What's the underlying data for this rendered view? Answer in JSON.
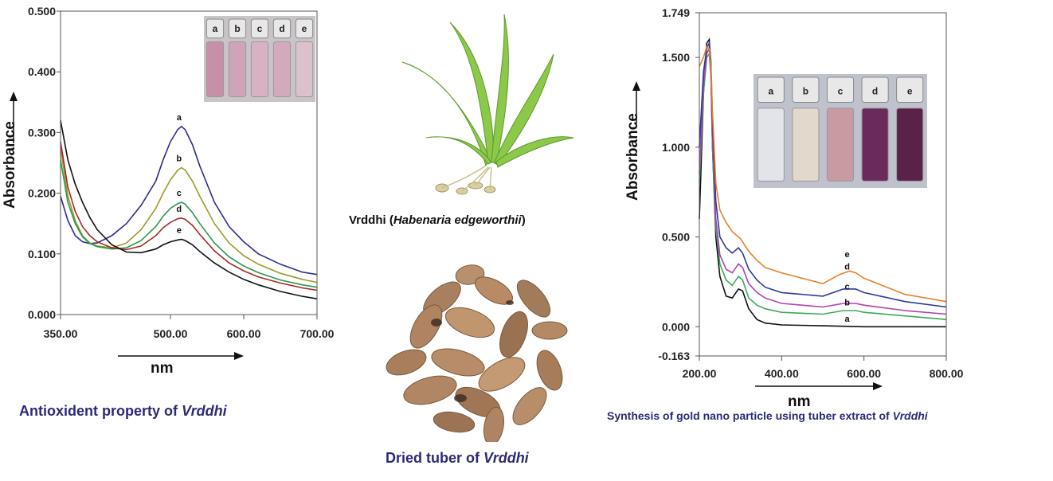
{
  "left_figure": {
    "caption_text": "Antioxident property of ",
    "caption_italic": "Vrddhi",
    "inset_vials": [
      "a",
      "b",
      "c",
      "d",
      "e"
    ]
  },
  "center": {
    "plant_caption_text": "Vrddhi  (",
    "plant_caption_italic": "Habenaria edgeworthii",
    "plant_caption_end": ")",
    "tuber_caption_text": "Dried tuber of ",
    "tuber_caption_italic": "Vrddhi"
  },
  "right_figure": {
    "caption_text": "Synthesis of gold nano particle using tuber extract of ",
    "caption_italic": "Vrddhi",
    "inset_vials": [
      "a",
      "b",
      "c",
      "d",
      "e"
    ]
  },
  "chart_data": [
    {
      "type": "line",
      "xlabel": "nm",
      "ylabel": "Absorbance",
      "xlim": [
        350,
        700
      ],
      "ylim": [
        0,
        0.5
      ],
      "xticks": [
        "350.00",
        "500.00",
        "600.00",
        "700.00"
      ],
      "yticks": [
        "0.000",
        "0.100",
        "0.200",
        "0.300",
        "0.400",
        "0.500"
      ],
      "series": [
        {
          "name": "a",
          "color": "#2d2d8c",
          "x": [
            350,
            360,
            370,
            380,
            390,
            400,
            420,
            440,
            460,
            480,
            490,
            500,
            510,
            515,
            520,
            530,
            540,
            560,
            580,
            600,
            620,
            650,
            680,
            700
          ],
          "y": [
            0.195,
            0.155,
            0.13,
            0.12,
            0.117,
            0.118,
            0.13,
            0.15,
            0.18,
            0.22,
            0.255,
            0.285,
            0.305,
            0.31,
            0.305,
            0.28,
            0.245,
            0.185,
            0.145,
            0.12,
            0.1,
            0.083,
            0.07,
            0.066
          ]
        },
        {
          "name": "b",
          "color": "#9a9a2a",
          "x": [
            350,
            360,
            370,
            380,
            390,
            400,
            420,
            440,
            460,
            480,
            490,
            500,
            510,
            515,
            520,
            530,
            540,
            560,
            580,
            600,
            620,
            650,
            680,
            700
          ],
          "y": [
            0.275,
            0.195,
            0.155,
            0.13,
            0.118,
            0.113,
            0.11,
            0.118,
            0.14,
            0.175,
            0.2,
            0.222,
            0.238,
            0.242,
            0.238,
            0.22,
            0.195,
            0.15,
            0.118,
            0.097,
            0.083,
            0.068,
            0.058,
            0.053
          ]
        },
        {
          "name": "c",
          "color": "#2a9a4a",
          "x": [
            350,
            360,
            370,
            380,
            390,
            400,
            420,
            440,
            460,
            480,
            490,
            500,
            510,
            515,
            520,
            530,
            540,
            560,
            580,
            600,
            620,
            650,
            680,
            700
          ],
          "y": [
            0.255,
            0.185,
            0.15,
            0.128,
            0.117,
            0.112,
            0.108,
            0.11,
            0.122,
            0.145,
            0.162,
            0.175,
            0.183,
            0.185,
            0.182,
            0.168,
            0.15,
            0.118,
            0.095,
            0.08,
            0.069,
            0.057,
            0.049,
            0.045
          ]
        },
        {
          "name": "d",
          "color": "#a82828",
          "x": [
            350,
            360,
            370,
            380,
            390,
            400,
            420,
            440,
            460,
            480,
            490,
            500,
            510,
            515,
            520,
            530,
            540,
            560,
            580,
            600,
            620,
            650,
            680,
            700
          ],
          "y": [
            0.285,
            0.21,
            0.17,
            0.145,
            0.13,
            0.12,
            0.11,
            0.107,
            0.113,
            0.13,
            0.143,
            0.152,
            0.158,
            0.159,
            0.157,
            0.147,
            0.132,
            0.105,
            0.085,
            0.072,
            0.062,
            0.052,
            0.044,
            0.04
          ]
        },
        {
          "name": "e",
          "color": "#111111",
          "x": [
            350,
            360,
            370,
            380,
            390,
            400,
            420,
            440,
            460,
            480,
            490,
            500,
            510,
            515,
            520,
            530,
            540,
            560,
            580,
            600,
            620,
            650,
            680,
            700
          ],
          "y": [
            0.32,
            0.255,
            0.215,
            0.185,
            0.16,
            0.14,
            0.115,
            0.103,
            0.102,
            0.108,
            0.115,
            0.12,
            0.123,
            0.124,
            0.122,
            0.115,
            0.104,
            0.085,
            0.07,
            0.058,
            0.049,
            0.038,
            0.03,
            0.026
          ]
        }
      ]
    },
    {
      "type": "line",
      "xlabel": "nm",
      "ylabel": "Absorbance",
      "xlim": [
        200,
        800
      ],
      "ylim": [
        -0.163,
        1.749
      ],
      "xticks": [
        "200.00",
        "400.00",
        "600.00",
        "800.00"
      ],
      "yticks": [
        "-0.163",
        "0.000",
        "0.500",
        "1.000",
        "1.500",
        "1.749"
      ],
      "series": [
        {
          "name": "a",
          "color": "#111111",
          "x": [
            200,
            210,
            218,
            224,
            228,
            232,
            240,
            250,
            265,
            280,
            295,
            305,
            320,
            340,
            360,
            400,
            500,
            600,
            700,
            800
          ],
          "y": [
            0.6,
            1.3,
            1.58,
            1.6,
            1.45,
            1.0,
            0.5,
            0.28,
            0.17,
            0.16,
            0.21,
            0.2,
            0.1,
            0.04,
            0.02,
            0.01,
            0.005,
            0.0,
            0.0,
            0.0
          ]
        },
        {
          "name": "b",
          "color": "#3caa5a",
          "x": [
            200,
            210,
            218,
            224,
            228,
            232,
            240,
            250,
            265,
            280,
            295,
            305,
            320,
            340,
            360,
            400,
            500,
            550,
            580,
            600,
            700,
            800
          ],
          "y": [
            0.8,
            1.3,
            1.5,
            1.52,
            1.4,
            1.0,
            0.55,
            0.35,
            0.26,
            0.23,
            0.28,
            0.26,
            0.16,
            0.12,
            0.1,
            0.08,
            0.07,
            0.09,
            0.09,
            0.08,
            0.06,
            0.04
          ]
        },
        {
          "name": "c",
          "color": "#b040b0",
          "x": [
            200,
            210,
            218,
            224,
            228,
            232,
            240,
            250,
            265,
            280,
            295,
            305,
            320,
            340,
            360,
            400,
            500,
            550,
            580,
            600,
            700,
            800
          ],
          "y": [
            0.85,
            1.35,
            1.52,
            1.55,
            1.42,
            1.05,
            0.6,
            0.4,
            0.32,
            0.3,
            0.35,
            0.33,
            0.24,
            0.19,
            0.16,
            0.13,
            0.11,
            0.13,
            0.13,
            0.12,
            0.09,
            0.07
          ]
        },
        {
          "name": "d",
          "color": "#2a3a9a",
          "x": [
            200,
            210,
            218,
            224,
            228,
            232,
            240,
            250,
            265,
            280,
            295,
            305,
            320,
            340,
            360,
            400,
            500,
            550,
            580,
            600,
            700,
            800
          ],
          "y": [
            1.0,
            1.42,
            1.55,
            1.58,
            1.48,
            1.15,
            0.7,
            0.5,
            0.44,
            0.41,
            0.44,
            0.41,
            0.32,
            0.26,
            0.22,
            0.19,
            0.17,
            0.21,
            0.21,
            0.19,
            0.14,
            0.11
          ]
        },
        {
          "name": "e",
          "color": "#e8802a",
          "x": [
            200,
            210,
            218,
            224,
            228,
            232,
            240,
            250,
            265,
            280,
            300,
            320,
            340,
            360,
            400,
            450,
            500,
            540,
            565,
            580,
            600,
            700,
            800
          ],
          "y": [
            1.45,
            1.5,
            1.56,
            1.55,
            1.45,
            1.2,
            0.8,
            0.65,
            0.58,
            0.53,
            0.49,
            0.42,
            0.37,
            0.33,
            0.3,
            0.27,
            0.24,
            0.29,
            0.31,
            0.3,
            0.27,
            0.18,
            0.14
          ]
        }
      ]
    }
  ]
}
